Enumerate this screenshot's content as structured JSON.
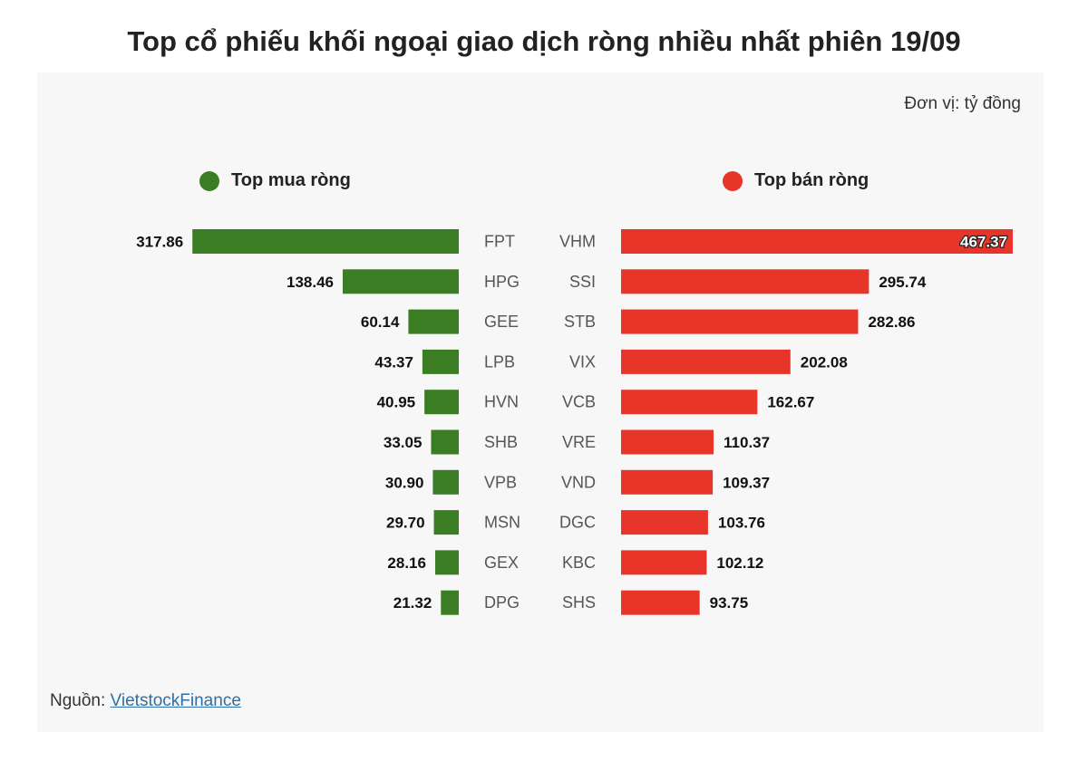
{
  "chart_data": {
    "type": "bar",
    "title": "Top cổ phiếu khối ngoại giao dịch ròng nhiều nhất phiên 19/09",
    "unit_label": "Đơn vị: tỷ đồng",
    "series": [
      {
        "name": "Top mua ròng",
        "color": "#3a7d23",
        "categories": [
          "FPT",
          "HPG",
          "GEE",
          "LPB",
          "HVN",
          "SHB",
          "VPB",
          "MSN",
          "GEX",
          "DPG"
        ],
        "labels": [
          "317.86",
          "138.46",
          "60.14",
          "43.37",
          "40.95",
          "33.05",
          "30.90",
          "29.70",
          "28.16",
          "21.32"
        ],
        "values": [
          317.86,
          138.46,
          60.14,
          43.37,
          40.95,
          33.05,
          30.9,
          29.7,
          28.16,
          21.32
        ]
      },
      {
        "name": "Top bán ròng",
        "color": "#e8352a",
        "categories": [
          "VHM",
          "SSI",
          "STB",
          "VIX",
          "VCB",
          "VRE",
          "VND",
          "DGC",
          "KBC",
          "SHS"
        ],
        "labels": [
          "467.37",
          "295.74",
          "282.86",
          "202.08",
          "162.67",
          "110.37",
          "109.37",
          "103.76",
          "102.12",
          "93.75"
        ],
        "values": [
          467.37,
          295.74,
          282.86,
          202.08,
          162.67,
          110.37,
          109.37,
          103.76,
          102.12,
          93.75
        ]
      }
    ]
  },
  "source": {
    "prefix": "Nguồn: ",
    "link_text": "VietstockFinance"
  }
}
